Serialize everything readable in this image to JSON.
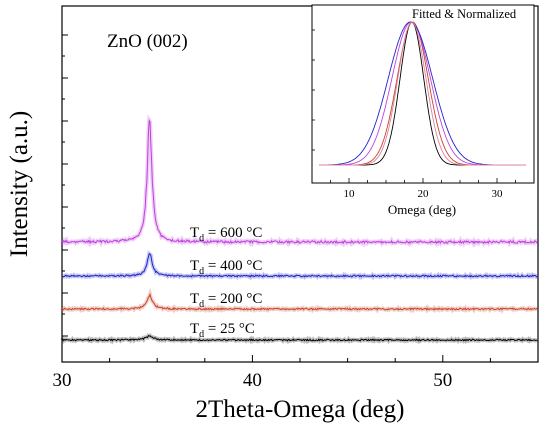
{
  "chart_data": [
    {
      "type": "line",
      "xlabel": "2Theta-Omega (deg)",
      "ylabel": "Intensity (a.u.)",
      "xlim": [
        30,
        55
      ],
      "x_ticks": [
        "30",
        "40",
        "50"
      ],
      "x_tick_values": [
        30,
        40,
        50
      ],
      "y_ticks_labeled": false,
      "peak_annotation": "ZnO (002)",
      "peak_position": 34.6,
      "series": [
        {
          "label_prefix": "T",
          "label_sub": "d",
          "label_suffix": " = 25 °C",
          "color": "#000000",
          "baseline": 0.0,
          "peak_height": 0.3,
          "peak_width": 0.25
        },
        {
          "label_prefix": "T",
          "label_sub": "d",
          "label_suffix": " = 200  °C",
          "color": "#c8442a",
          "baseline": 1.0,
          "peak_height": 1.1,
          "peak_width": 0.18
        },
        {
          "label_prefix": "T",
          "label_sub": "d",
          "label_suffix": " = 400  °C",
          "color": "#1f24c8",
          "baseline": 2.0,
          "peak_height": 1.8,
          "peak_width": 0.16
        },
        {
          "label_prefix": "T",
          "label_sub": "d",
          "label_suffix": " = 600  °C",
          "color": "#c040e0",
          "baseline": 3.0,
          "peak_height": 5.9,
          "peak_width": 0.15
        }
      ]
    },
    {
      "type": "line",
      "annotation": "Fitted & Normalized",
      "xlabel": "Omega (deg)",
      "xlim": [
        5,
        35
      ],
      "x_ticks": [
        "10",
        "20",
        "30"
      ],
      "x_tick_values": [
        10,
        20,
        30
      ],
      "series": [
        {
          "center": 18.5,
          "sigma": 1.6,
          "color": "#000000"
        },
        {
          "center": 18.6,
          "sigma": 2.1,
          "color": "#c8442a"
        },
        {
          "center": 18.4,
          "sigma": 2.6,
          "color": "#c040e0"
        },
        {
          "center": 18.3,
          "sigma": 3.0,
          "color": "#1f24c8"
        },
        {
          "center": 18.5,
          "sigma": 1.9,
          "color": "#e080a0"
        }
      ]
    }
  ]
}
